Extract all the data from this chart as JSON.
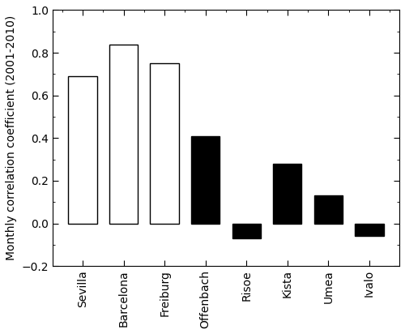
{
  "categories": [
    "Sevilla",
    "Barcelona",
    "Freiburg",
    "Offenbach",
    "Risoe",
    "Kista",
    "Umea",
    "Ivalo"
  ],
  "values": [
    0.69,
    0.84,
    0.75,
    0.41,
    -0.07,
    0.28,
    0.13,
    -0.06
  ],
  "colors": [
    "white",
    "white",
    "white",
    "black",
    "black",
    "black",
    "black",
    "black"
  ],
  "edge_colors": [
    "black",
    "black",
    "black",
    "black",
    "black",
    "black",
    "black",
    "black"
  ],
  "ylabel": "Monthly correlation coefficient (2001-2010)",
  "ylim": [
    -0.2,
    1.0
  ],
  "yticks": [
    -0.2,
    0.0,
    0.2,
    0.4,
    0.6,
    0.8,
    1.0
  ],
  "bar_width": 0.7,
  "background_color": "#ffffff",
  "label_fontsize": 10,
  "tick_fontsize": 10,
  "ylabel_fontsize": 10
}
